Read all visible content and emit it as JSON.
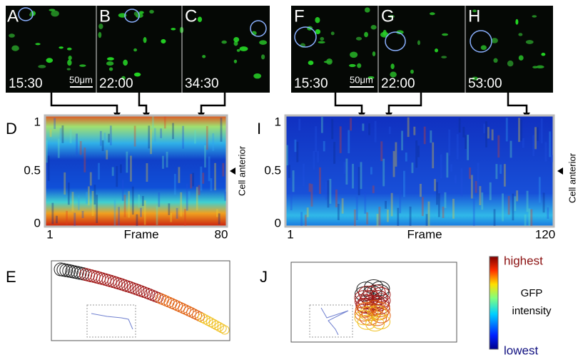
{
  "panels": {
    "left": {
      "images": [
        {
          "letter": "A",
          "time": "15:30"
        },
        {
          "letter": "B",
          "time": "22:00"
        },
        {
          "letter": "C",
          "time": "34:30"
        }
      ],
      "scale_bar": "50μm",
      "heatmap": {
        "letter": "D",
        "yticks": [
          "1",
          "0.5",
          "0"
        ],
        "xticks": [
          "1",
          "80"
        ],
        "xlabel": "Frame",
        "side_label": "Cell anterior"
      },
      "trajectory": {
        "letter": "E"
      }
    },
    "right": {
      "images": [
        {
          "letter": "F",
          "time": "15:30"
        },
        {
          "letter": "G",
          "time": "22:00"
        },
        {
          "letter": "H",
          "time": "53:00"
        }
      ],
      "scale_bar": "50μm",
      "heatmap": {
        "letter": "I",
        "yticks": [
          "1",
          "0.5",
          "0"
        ],
        "xticks": [
          "1",
          "120"
        ],
        "xlabel": "Frame",
        "side_label": "Cell anterior"
      },
      "trajectory": {
        "letter": "J"
      }
    }
  },
  "colorbar": {
    "top": "highest",
    "middle_1": "GFP",
    "middle_2": "intensity",
    "bottom": "lowest"
  }
}
